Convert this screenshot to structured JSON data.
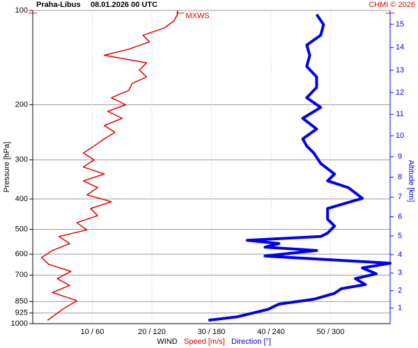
{
  "chart_data": {
    "type": "line",
    "title": "Praha-Libus",
    "subtitle": "08.01.2026 00 UTC",
    "credit": "CHMI © 2026",
    "ylabel": "Pressure [hPa]",
    "y2label": "Altitude [km]",
    "xlabel": "WIND",
    "log_y": true,
    "ylim": [
      1000,
      100
    ],
    "yticks": [
      100,
      200,
      300,
      400,
      500,
      600,
      700,
      850,
      925,
      1000
    ],
    "y2ticks": [
      1,
      2,
      3,
      4,
      5,
      6,
      7,
      8,
      9,
      10,
      11,
      12,
      13,
      14,
      15
    ],
    "xlim": [
      0,
      60
    ],
    "x2lim": [
      0,
      360
    ],
    "xticks": [
      {
        "value": 10,
        "label": "10 / 60"
      },
      {
        "value": 20,
        "label": "20 / 120"
      },
      {
        "value": 30,
        "label": "30 / 180"
      },
      {
        "value": 40,
        "label": "40 / 240"
      },
      {
        "value": 50,
        "label": "50 / 300"
      }
    ],
    "grid": true,
    "annotations": [
      {
        "text": "MXWS",
        "value": 24.5,
        "pressure": 102
      }
    ],
    "series": [
      {
        "name": "Speed [m/s]",
        "color": "#e00000",
        "pressure": [
          975,
          900,
          845,
          795,
          755,
          718,
          681,
          647,
          615,
          584,
          555,
          527,
          502,
          476,
          452,
          429,
          408,
          388,
          368,
          350,
          333,
          316,
          300,
          285,
          271,
          257,
          245,
          233,
          221,
          210,
          200,
          190,
          180,
          171,
          163,
          155,
          147,
          139,
          133,
          126,
          120,
          114,
          108,
          103,
          100
        ],
        "values": [
          2.5,
          5.0,
          7.4,
          3.3,
          6.2,
          4.1,
          6.4,
          2.7,
          1.5,
          3.3,
          6.2,
          4.4,
          9.1,
          7.4,
          10.9,
          9.7,
          13.2,
          9.1,
          10.9,
          8.5,
          12.0,
          8.5,
          10.3,
          8.5,
          10.3,
          12.0,
          13.8,
          12.0,
          15.0,
          12.6,
          15.6,
          13.2,
          16.1,
          16.7,
          19.1,
          17.9,
          19.1,
          12.0,
          16.1,
          19.6,
          18.5,
          22.0,
          23.7,
          24.3,
          24.3
        ]
      },
      {
        "name": "Direction [°]",
        "color": "#0000ee",
        "axis": "x2",
        "pressure": [
          975,
          951,
          900,
          866,
          836,
          800,
          773,
          750,
          718,
          693,
          664,
          641,
          621,
          608,
          584,
          570,
          555,
          542,
          527,
          514,
          488,
          464,
          429,
          398,
          368,
          350,
          333,
          308,
          285,
          271,
          257,
          239,
          221,
          204,
          190,
          176,
          163,
          151,
          139,
          129,
          120,
          111,
          103
        ],
        "values": [
          177,
          206,
          237,
          248,
          283,
          304,
          311,
          335,
          325,
          346,
          332,
          360,
          283,
          234,
          286,
          234,
          248,
          216,
          290,
          297,
          304,
          297,
          297,
          332,
          318,
          297,
          304,
          290,
          283,
          276,
          272,
          286,
          272,
          290,
          276,
          286,
          286,
          276,
          279,
          276,
          290,
          293,
          286
        ]
      }
    ]
  }
}
